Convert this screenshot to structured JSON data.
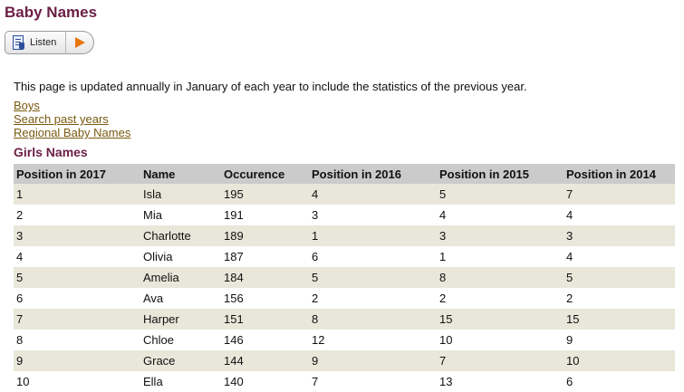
{
  "page": {
    "title": "Baby Names",
    "listen_label": "Listen",
    "intro": "This page is updated annually in January of each year to include the statistics of the previous year.",
    "links": [
      "Boys",
      "Search past years",
      "Regional Baby Names"
    ],
    "section_title": "Girls Names"
  },
  "table": {
    "headers": [
      "Position in 2017",
      "Name",
      "Occurence",
      "Position in 2016",
      "Position in 2015",
      "Position in 2014"
    ],
    "rows": [
      [
        "1",
        "Isla",
        "195",
        "4",
        "5",
        "7"
      ],
      [
        "2",
        "Mia",
        "191",
        "3",
        "4",
        "4"
      ],
      [
        "3",
        "Charlotte",
        "189",
        "1",
        "3",
        "3"
      ],
      [
        "4",
        "Olivia",
        "187",
        "6",
        "1",
        "4"
      ],
      [
        "5",
        "Amelia",
        "184",
        "5",
        "8",
        "5"
      ],
      [
        "6",
        "Ava",
        "156",
        "2",
        "2",
        "2"
      ],
      [
        "7",
        "Harper",
        "151",
        "8",
        "15",
        "15"
      ],
      [
        "8",
        "Chloe",
        "146",
        "12",
        "10",
        "9"
      ],
      [
        "9",
        "Grace",
        "144",
        "9",
        "7",
        "10"
      ],
      [
        "10",
        "Ella",
        "140",
        "7",
        "13",
        "6"
      ]
    ]
  },
  "icons": {
    "listen": "document-speaker-icon",
    "play": "play-icon"
  },
  "colors": {
    "heading": "#6b1e45",
    "link": "#7a5a10",
    "row_stripe": "#e9e7da",
    "header_bg": "#cbcbcb",
    "play": "#e8740c"
  }
}
